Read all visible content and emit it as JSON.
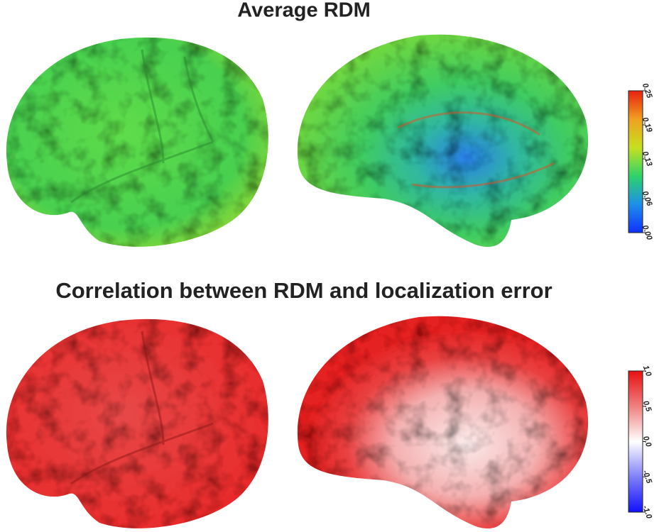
{
  "panels": [
    {
      "title": "Average RDM",
      "colorbar": {
        "lim": [
          0,
          0.25
        ],
        "ticks": [
          {
            "value": 0,
            "label": "0.00"
          },
          0.06,
          0.13,
          0.19,
          0.25
        ],
        "colors": [
          "#1030ff",
          "#1e90e8",
          "#2ed36a",
          "#c8e020",
          "#f0a020",
          "#e82010"
        ]
      }
    },
    {
      "title": "Correlation between RDM and localization error",
      "colorbar": {
        "lim": [
          -1,
          1
        ],
        "ticks": [
          {
            "value": -1,
            "label": "-1.0"
          },
          -0.5,
          {
            "value": 0,
            "label": "0.0"
          },
          0.5,
          {
            "value": 1,
            "label": "1.0"
          }
        ],
        "colors": [
          "#1010ff",
          "#8080f8",
          "#ffffff",
          "#f08080",
          "#e81010"
        ]
      }
    }
  ]
}
